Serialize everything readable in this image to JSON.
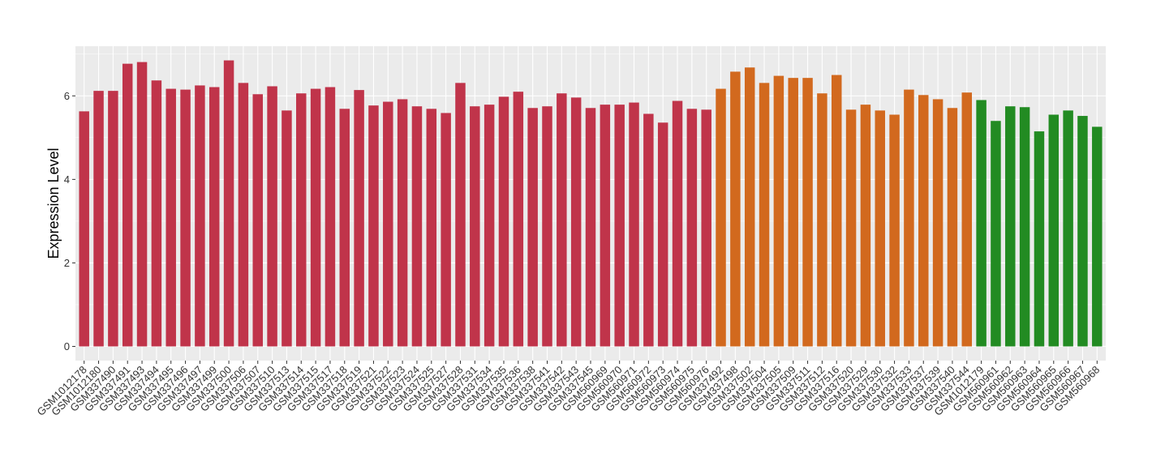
{
  "chart_data": {
    "type": "bar",
    "y_label": "Expression Level",
    "categories": [
      "GSM1012178",
      "GSM1012180",
      "GSM337490",
      "GSM337491",
      "GSM337493",
      "GSM337494",
      "GSM337495",
      "GSM337496",
      "GSM337497",
      "GSM337499",
      "GSM337500",
      "GSM337506",
      "GSM337507",
      "GSM337510",
      "GSM337513",
      "GSM337514",
      "GSM337515",
      "GSM337517",
      "GSM337518",
      "GSM337519",
      "GSM337521",
      "GSM337522",
      "GSM337523",
      "GSM337524",
      "GSM337525",
      "GSM337527",
      "GSM337528",
      "GSM337531",
      "GSM337534",
      "GSM337535",
      "GSM337536",
      "GSM337538",
      "GSM337541",
      "GSM337542",
      "GSM337543",
      "GSM337545",
      "GSM560969",
      "GSM560970",
      "GSM560971",
      "GSM560972",
      "GSM560973",
      "GSM560974",
      "GSM560975",
      "GSM560976",
      "GSM337492",
      "GSM337498",
      "GSM337502",
      "GSM337504",
      "GSM337505",
      "GSM337509",
      "GSM337511",
      "GSM337512",
      "GSM337516",
      "GSM337520",
      "GSM337529",
      "GSM337530",
      "GSM337532",
      "GSM337533",
      "GSM337537",
      "GSM337539",
      "GSM337540",
      "GSM337544",
      "GSM1012179",
      "GSM560961",
      "GSM560962",
      "GSM560963",
      "GSM560964",
      "GSM560965",
      "GSM560966",
      "GSM560967",
      "GSM560968"
    ],
    "values": [
      5.63,
      6.12,
      6.12,
      6.77,
      6.81,
      6.37,
      6.17,
      6.15,
      6.25,
      6.21,
      6.85,
      6.31,
      6.04,
      6.23,
      5.65,
      6.06,
      6.17,
      6.21,
      5.69,
      6.14,
      5.77,
      5.86,
      5.92,
      5.75,
      5.69,
      5.59,
      6.31,
      5.75,
      5.79,
      5.98,
      6.1,
      5.71,
      5.75,
      6.06,
      5.96,
      5.71,
      5.79,
      5.79,
      5.84,
      5.57,
      5.36,
      5.88,
      5.69,
      5.67,
      6.17,
      6.58,
      6.68,
      6.31,
      6.48,
      6.43,
      6.43,
      6.06,
      6.5,
      5.67,
      5.79,
      5.65,
      5.55,
      6.15,
      6.02,
      5.92,
      5.71,
      6.08,
      5.9,
      5.4,
      5.75,
      5.73,
      5.15,
      5.55,
      5.65,
      5.52,
      5.26
    ],
    "colors": [
      "#c0344a",
      "#c0344a",
      "#c0344a",
      "#c0344a",
      "#c0344a",
      "#c0344a",
      "#c0344a",
      "#c0344a",
      "#c0344a",
      "#c0344a",
      "#c0344a",
      "#c0344a",
      "#c0344a",
      "#c0344a",
      "#c0344a",
      "#c0344a",
      "#c0344a",
      "#c0344a",
      "#c0344a",
      "#c0344a",
      "#c0344a",
      "#c0344a",
      "#c0344a",
      "#c0344a",
      "#c0344a",
      "#c0344a",
      "#c0344a",
      "#c0344a",
      "#c0344a",
      "#c0344a",
      "#c0344a",
      "#c0344a",
      "#c0344a",
      "#c0344a",
      "#c0344a",
      "#c0344a",
      "#c0344a",
      "#c0344a",
      "#c0344a",
      "#c0344a",
      "#c0344a",
      "#c0344a",
      "#c0344a",
      "#c0344a",
      "#d2691e",
      "#d2691e",
      "#d2691e",
      "#d2691e",
      "#d2691e",
      "#d2691e",
      "#d2691e",
      "#d2691e",
      "#d2691e",
      "#d2691e",
      "#d2691e",
      "#d2691e",
      "#d2691e",
      "#d2691e",
      "#d2691e",
      "#d2691e",
      "#d2691e",
      "#d2691e",
      "#228b22",
      "#228b22",
      "#228b22",
      "#228b22",
      "#228b22",
      "#228b22",
      "#228b22",
      "#228b22",
      "#228b22"
    ],
    "ylim": [
      -0.34,
      7.19
    ],
    "yticks": [
      0,
      2,
      4,
      6
    ],
    "grid": true
  }
}
